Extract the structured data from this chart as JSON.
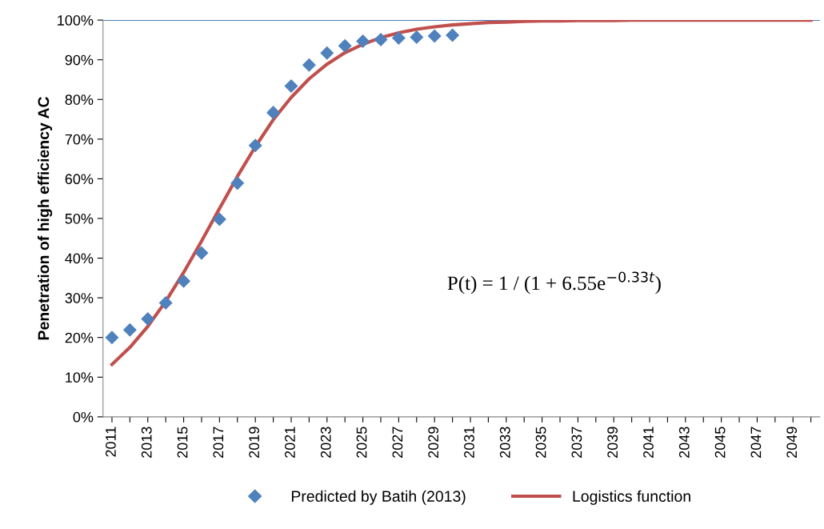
{
  "chart_data": {
    "type": "line",
    "ylabel": "Penetration of high efficiency AC",
    "categories": [
      "2011",
      null,
      "2013",
      null,
      "2015",
      null,
      "2017",
      null,
      "2019",
      null,
      "2021",
      null,
      "2023",
      null,
      "2025",
      null,
      "2027",
      null,
      "2029",
      null,
      "2031",
      null,
      "2033",
      null,
      "2035",
      null,
      "2037",
      null,
      "2039",
      null,
      "2041",
      null,
      "2043",
      null,
      "2045",
      null,
      "2047",
      null,
      "2049",
      null
    ],
    "series": [
      {
        "name": "Predicted by Batih (2013)",
        "type": "scatter",
        "marker": "diamond",
        "color": "#4f81bd",
        "values": [
          20.0,
          21.9,
          24.7,
          28.7,
          34.2,
          41.3,
          49.8,
          58.9,
          68.4,
          76.7,
          83.4,
          88.7,
          91.7,
          93.5,
          94.7,
          95.1,
          95.5,
          95.7,
          96.0,
          96.2,
          null,
          null,
          null,
          null,
          null,
          null,
          null,
          null,
          null,
          null,
          null,
          null,
          null,
          null,
          null,
          null,
          null,
          null,
          null,
          null
        ]
      },
      {
        "name": "Logistics function",
        "color": "#c0504d",
        "values": [
          13.2,
          17.5,
          22.8,
          29.1,
          36.4,
          44.3,
          52.5,
          60.6,
          68.1,
          74.9,
          80.5,
          85.2,
          88.9,
          91.8,
          93.9,
          95.6,
          96.8,
          97.7,
          98.3,
          98.8,
          99.1,
          99.4,
          99.5,
          99.7,
          99.8,
          99.8,
          99.9,
          99.9,
          99.9,
          100,
          100,
          100,
          100,
          100,
          100,
          100,
          100,
          100,
          100,
          100
        ]
      }
    ],
    "ylim": [
      0,
      100
    ],
    "yticks": [
      {
        "value": 0,
        "label": "0%"
      },
      {
        "value": 10,
        "label": "10%"
      },
      {
        "value": 20,
        "label": "20%"
      },
      {
        "value": 30,
        "label": "30%"
      },
      {
        "value": 40,
        "label": "40%"
      },
      {
        "value": 50,
        "label": "50%"
      },
      {
        "value": 60,
        "label": "60%"
      },
      {
        "value": 70,
        "label": "70%"
      },
      {
        "value": 80,
        "label": "80%"
      },
      {
        "value": 90,
        "label": "90%"
      },
      {
        "value": 100,
        "label": "100%"
      }
    ],
    "ref_lines": [
      {
        "axis": "y",
        "value": 100,
        "color": "#4a7ebb"
      }
    ],
    "annotations": [
      "P(t) = 1 / (1 + 6.55e$^{−0.33t}$)"
    ],
    "grid": false,
    "legend": "bottom"
  }
}
